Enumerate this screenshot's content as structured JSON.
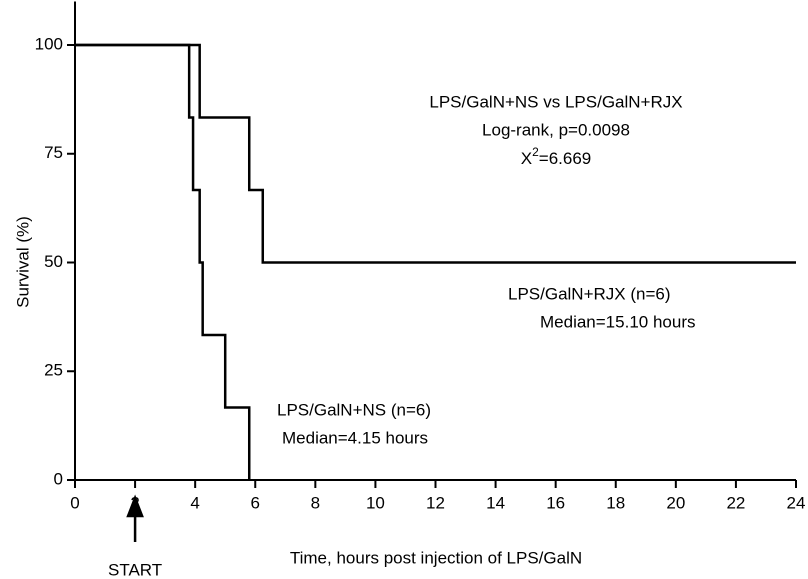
{
  "chart_data": {
    "type": "line",
    "step": true,
    "x_label": "Time, hours post injection of LPS/GalN",
    "y_label": "Survival (%)",
    "xlim": [
      0,
      24
    ],
    "xticks": [
      0,
      2,
      4,
      6,
      8,
      10,
      12,
      14,
      16,
      18,
      20,
      22,
      24
    ],
    "ylim": [
      0,
      110
    ],
    "yticks": [
      0,
      25,
      50,
      75,
      100
    ],
    "series": [
      {
        "name": "LPS/GalN+RJX (n=6)",
        "color": "#000000",
        "x": [
          0,
          4.15,
          5.8,
          6.25,
          24
        ],
        "values": [
          100,
          83.33,
          66.67,
          50,
          50
        ]
      },
      {
        "name": "LPS/GalN+NS (n=6)",
        "color": "#000000",
        "x": [
          0,
          3.8,
          3.93,
          4.15,
          4.25,
          5.0,
          5.8
        ],
        "values": [
          100,
          83.33,
          66.67,
          50,
          33.33,
          16.67,
          0
        ]
      }
    ],
    "annotations": {
      "comparison": "LPS/GalN+NS vs LPS/GalN+RJX",
      "logrank": "Log-rank, p=0.0098",
      "chi_base": "X",
      "chi_sup": "2",
      "chi_rest": "=6.669",
      "rjx_median": "Median=15.10 hours",
      "ns_median": "Median=4.15 hours"
    },
    "start_marker": {
      "x": 2,
      "label": "START"
    }
  }
}
